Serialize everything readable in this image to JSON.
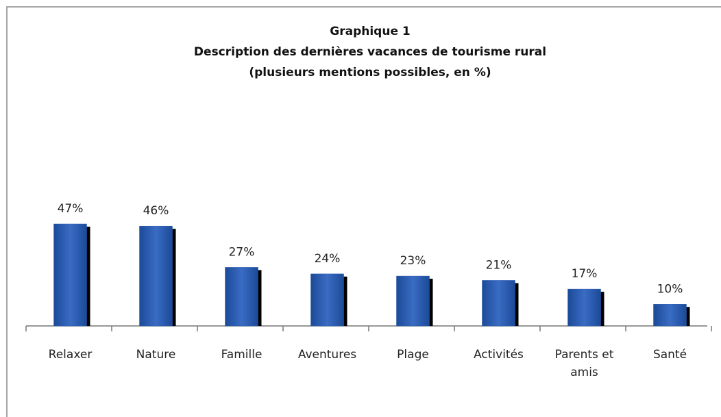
{
  "chart_data": {
    "type": "bar",
    "title": "Graphique 1",
    "subtitle": [
      "Description des dernières vacances de tourisme rural",
      "(plusieurs mentions possibles, en %)"
    ],
    "categories": [
      "Relaxer",
      "Nature",
      "Famille",
      "Aventures",
      "Plage",
      "Activités",
      "Parents et amis",
      "Santé"
    ],
    "values": [
      47,
      46,
      27,
      24,
      23,
      21,
      17,
      10
    ],
    "value_labels": [
      "47%",
      "46%",
      "27%",
      "24%",
      "23%",
      "21%",
      "17%",
      "10%"
    ],
    "color": "#2a5cae"
  }
}
